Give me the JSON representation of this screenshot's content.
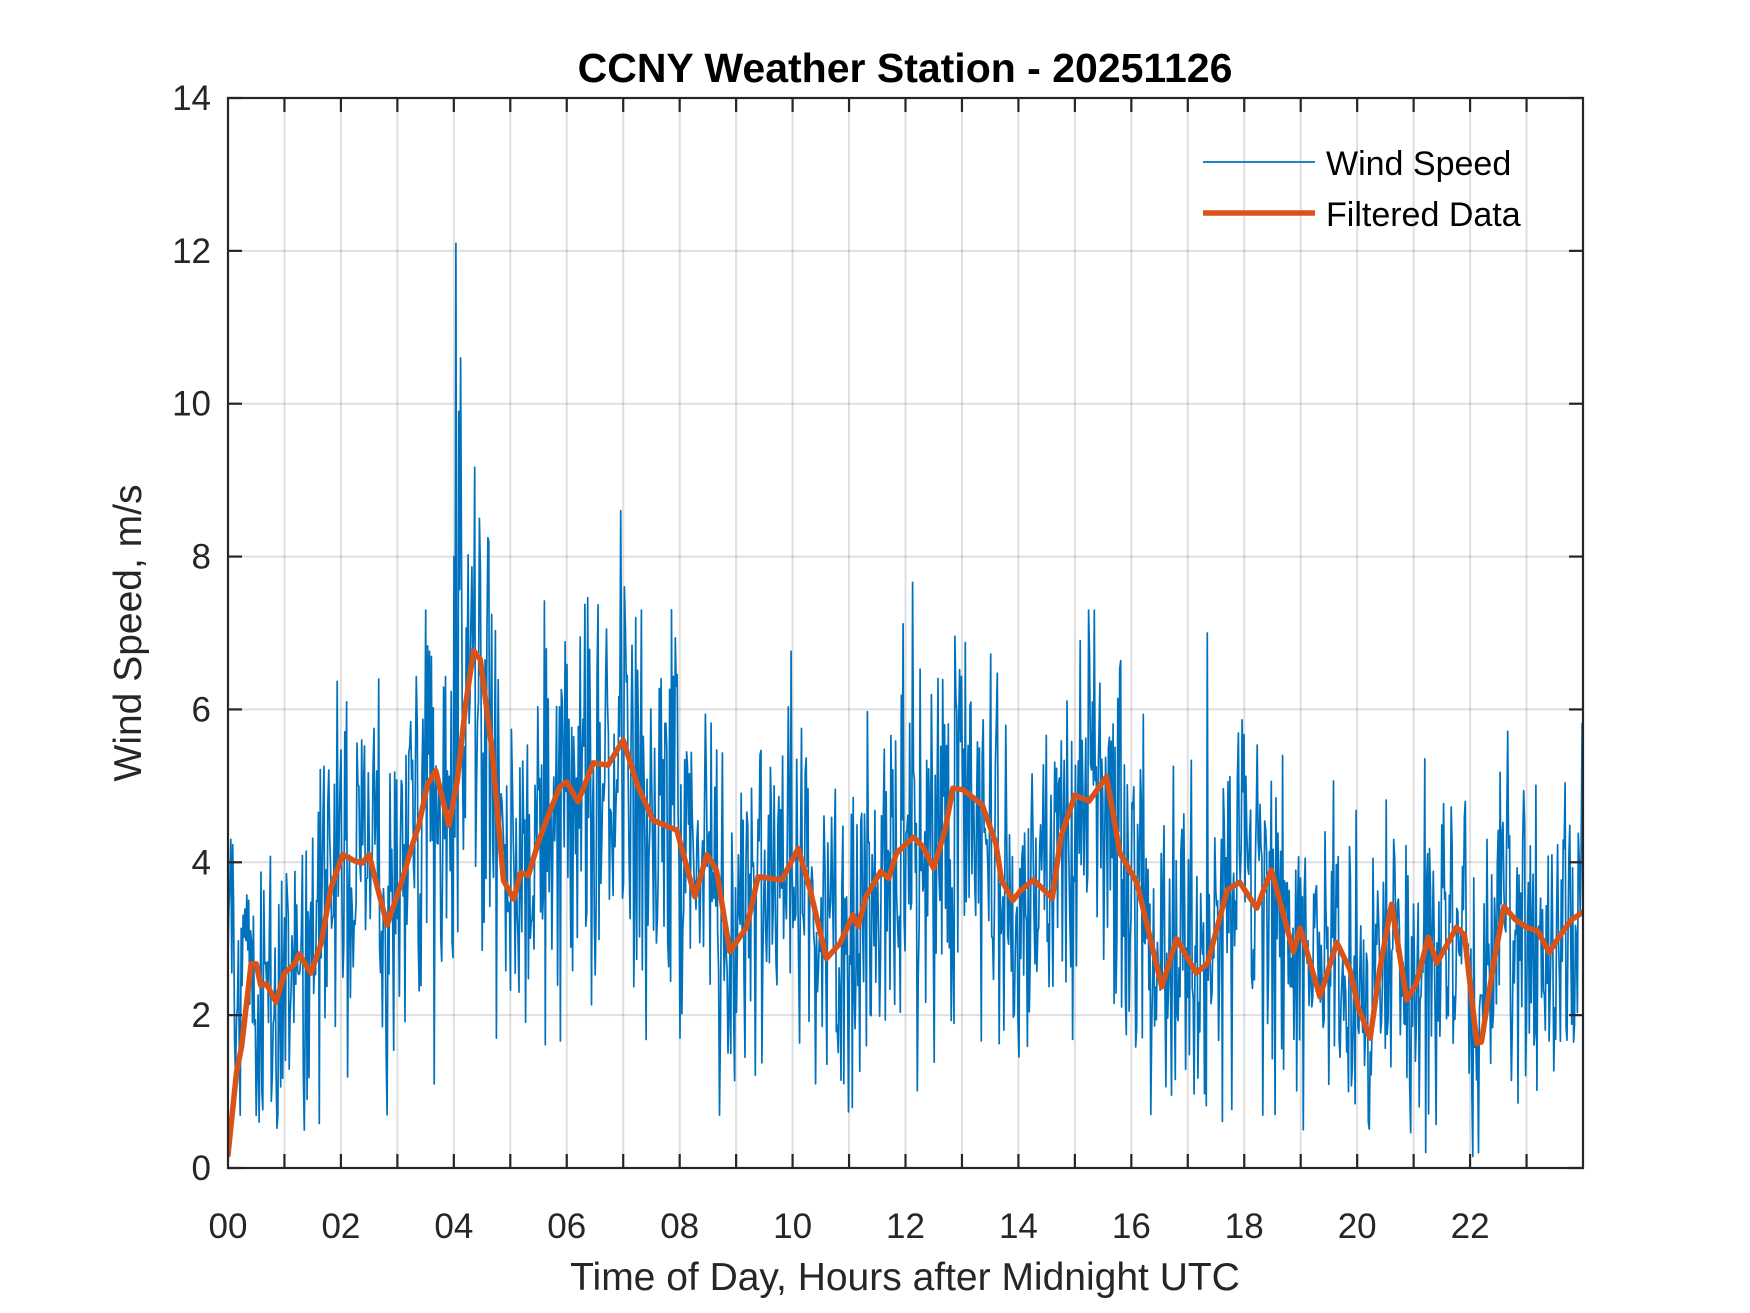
{
  "chart_data": {
    "type": "line",
    "title": "CCNY Weather Station - 20251126",
    "xlabel": "Time of Day, Hours after Midnight UTC",
    "ylabel": "Wind Speed, m/s",
    "xlim": [
      0,
      24
    ],
    "ylim": [
      0,
      14
    ],
    "xticks": [
      0,
      2,
      4,
      6,
      8,
      10,
      12,
      14,
      16,
      18,
      20,
      22
    ],
    "xtick_labels": [
      "00",
      "02",
      "04",
      "06",
      "08",
      "10",
      "12",
      "14",
      "16",
      "18",
      "20",
      "22"
    ],
    "xminor_grid_step": 1,
    "yticks": [
      0,
      2,
      4,
      6,
      8,
      10,
      12,
      14
    ],
    "ytick_labels": [
      "0",
      "2",
      "4",
      "6",
      "8",
      "10",
      "12",
      "14"
    ],
    "grid": true,
    "legend": {
      "placement": "top-right",
      "entries": [
        "Wind Speed",
        "Filtered Data"
      ]
    },
    "series": [
      {
        "name": "Wind Speed",
        "color": "#0072BD",
        "style": "thin",
        "sampling": "approx. 1-minute samples (noisy, individual samples not legible)",
        "sample_count": 1440,
        "noise_amplitude": 1.0,
        "notable_points": [
          {
            "x": 0.05,
            "y": 4.3
          },
          {
            "x": 0.55,
            "y": 0.6
          },
          {
            "x": 1.4,
            "y": 0.9
          },
          {
            "x": 2.1,
            "y": 6.1
          },
          {
            "x": 3.5,
            "y": 7.3
          },
          {
            "x": 3.65,
            "y": 1.1
          },
          {
            "x": 4.0,
            "y": 8.0
          },
          {
            "x": 4.03,
            "y": 12.1
          },
          {
            "x": 4.08,
            "y": 9.9
          },
          {
            "x": 4.12,
            "y": 10.6
          },
          {
            "x": 4.45,
            "y": 8.5
          },
          {
            "x": 4.75,
            "y": 1.7
          },
          {
            "x": 6.95,
            "y": 8.6
          },
          {
            "x": 8.0,
            "y": 1.7
          },
          {
            "x": 8.9,
            "y": 1.5
          },
          {
            "x": 10.4,
            "y": 1.1
          },
          {
            "x": 11.3,
            "y": 1.6
          },
          {
            "x": 12.7,
            "y": 5.8
          },
          {
            "x": 14.0,
            "y": 1.9
          },
          {
            "x": 15.1,
            "y": 6.9
          },
          {
            "x": 15.25,
            "y": 7.3
          },
          {
            "x": 15.35,
            "y": 7.3
          },
          {
            "x": 16.35,
            "y": 0.7
          },
          {
            "x": 17.35,
            "y": 7.0
          },
          {
            "x": 18.55,
            "y": 0.7
          },
          {
            "x": 19.05,
            "y": 0.5
          },
          {
            "x": 20.2,
            "y": 0.6
          },
          {
            "x": 22.05,
            "y": 0.15
          },
          {
            "x": 22.15,
            "y": 0.2
          },
          {
            "x": 22.3,
            "y": 4.3
          },
          {
            "x": 23.0,
            "y": 1.9
          },
          {
            "x": 24.0,
            "y": 4.9
          }
        ]
      },
      {
        "name": "Filtered Data",
        "color": "#D95319",
        "style": "thick",
        "x": [
          0.0,
          0.15,
          0.24,
          0.41,
          0.5,
          0.58,
          0.68,
          0.85,
          1.0,
          1.18,
          1.26,
          1.47,
          1.65,
          1.82,
          2.03,
          2.24,
          2.38,
          2.5,
          2.65,
          2.82,
          3.06,
          3.26,
          3.38,
          3.53,
          3.68,
          3.91,
          4.06,
          4.21,
          4.35,
          4.47,
          4.68,
          4.88,
          5.06,
          5.18,
          5.32,
          5.5,
          5.68,
          5.88,
          6.0,
          6.2,
          6.47,
          6.73,
          7.0,
          7.26,
          7.53,
          7.95,
          8.27,
          8.48,
          8.65,
          8.89,
          9.19,
          9.39,
          9.81,
          10.1,
          10.31,
          10.6,
          10.84,
          11.07,
          11.16,
          11.3,
          11.56,
          11.7,
          11.84,
          12.14,
          12.31,
          12.5,
          12.7,
          12.84,
          13.02,
          13.36,
          13.6,
          13.7,
          13.9,
          14.05,
          14.27,
          14.6,
          14.75,
          15.0,
          15.25,
          15.56,
          15.8,
          16.1,
          16.54,
          16.8,
          17.15,
          17.35,
          17.7,
          17.92,
          18.22,
          18.48,
          18.87,
          18.99,
          19.34,
          19.64,
          19.87,
          20.02,
          20.23,
          20.4,
          20.61,
          20.88,
          21.05,
          21.26,
          21.41,
          21.76,
          21.9,
          22.12,
          22.2,
          22.4,
          22.6,
          22.8,
          23.0,
          23.2,
          23.4,
          23.6,
          23.8,
          24.0
        ],
        "y": [
          0.17,
          1.25,
          1.59,
          2.67,
          2.67,
          2.39,
          2.41,
          2.17,
          2.55,
          2.67,
          2.8,
          2.55,
          2.94,
          3.66,
          4.1,
          4.02,
          3.99,
          4.1,
          3.66,
          3.18,
          3.71,
          4.22,
          4.48,
          5.01,
          5.2,
          4.48,
          5.06,
          6.07,
          6.77,
          6.65,
          5.45,
          3.76,
          3.52,
          3.86,
          3.83,
          4.27,
          4.63,
          4.99,
          5.05,
          4.79,
          5.3,
          5.27,
          5.6,
          4.99,
          4.55,
          4.42,
          3.55,
          4.1,
          3.9,
          2.83,
          3.16,
          3.81,
          3.77,
          4.18,
          3.64,
          2.74,
          2.94,
          3.31,
          3.16,
          3.55,
          3.88,
          3.79,
          4.12,
          4.33,
          4.2,
          3.92,
          4.42,
          4.97,
          4.95,
          4.75,
          4.25,
          3.77,
          3.5,
          3.64,
          3.77,
          3.53,
          4.33,
          4.88,
          4.8,
          5.12,
          4.12,
          3.73,
          2.37,
          3.0,
          2.55,
          2.68,
          3.64,
          3.74,
          3.4,
          3.9,
          2.83,
          3.14,
          2.24,
          2.95,
          2.6,
          2.1,
          1.7,
          2.6,
          3.45,
          2.2,
          2.42,
          3.02,
          2.68,
          3.15,
          3.05,
          1.63,
          1.65,
          2.6,
          3.42,
          3.25,
          3.15,
          3.1,
          2.82,
          3.05,
          3.25,
          3.35
        ]
      }
    ]
  }
}
